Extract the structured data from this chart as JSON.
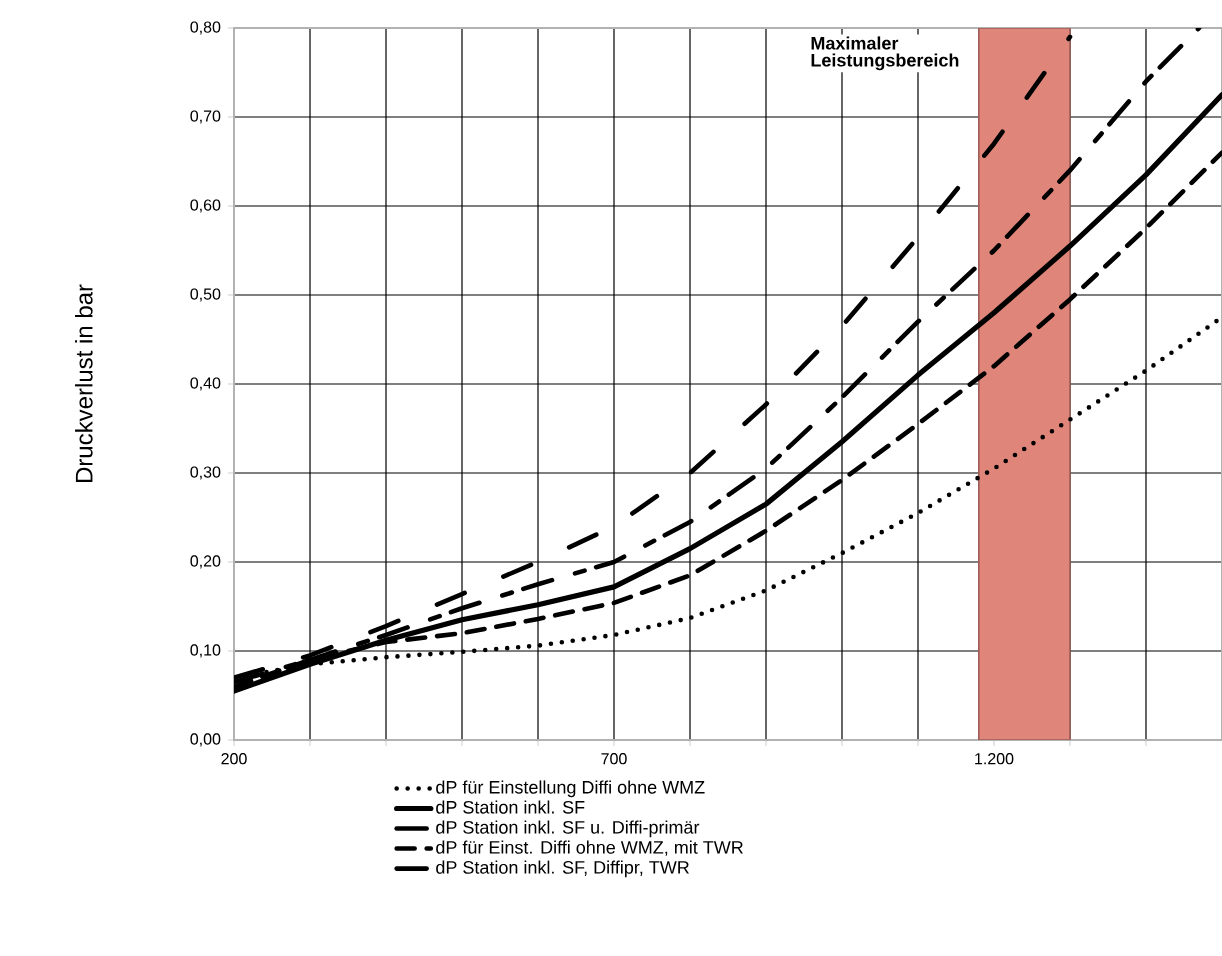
{
  "chart_data": {
    "type": "line",
    "ylabel": "Druckverlust in bar",
    "x": [
      200,
      300,
      400,
      500,
      600,
      700,
      800,
      900,
      1000,
      1100,
      1200,
      1300,
      1400,
      1500
    ],
    "xlim": [
      200,
      1500
    ],
    "ylim": [
      0,
      0.8
    ],
    "xticks": [
      200,
      {
        "value": 300,
        "label": null
      },
      {
        "value": 400,
        "label": null
      },
      {
        "value": 500,
        "label": null
      },
      {
        "value": 600,
        "label": null
      },
      700,
      {
        "value": 800,
        "label": null
      },
      {
        "value": 900,
        "label": null
      },
      {
        "value": 1000,
        "label": null
      },
      {
        "value": 1100,
        "label": null
      },
      {
        "value": 1200,
        "label": "1.200"
      },
      {
        "value": 1300,
        "label": null
      },
      {
        "value": 1400,
        "label": null
      }
    ],
    "yticks": [
      {
        "value": 0,
        "label": "0,00"
      },
      {
        "value": 0.1,
        "label": "0,10"
      },
      {
        "value": 0.2,
        "label": "0,20"
      },
      {
        "value": 0.3,
        "label": "0,30"
      },
      {
        "value": 0.4,
        "label": "0,40"
      },
      {
        "value": 0.5,
        "label": "0,50"
      },
      {
        "value": 0.6,
        "label": "0,60"
      },
      {
        "value": 0.7,
        "label": "0,70"
      },
      {
        "value": 0.8,
        "label": "0,80"
      }
    ],
    "grid": true,
    "legend": "bottom",
    "bands": [
      {
        "axis": "x",
        "from": 1180,
        "to": 1300,
        "label": "Maximaler Leistungsbereich",
        "color": "#e0857a"
      }
    ],
    "series": [
      {
        "name": "dP für Einstellung Diffi ohne WMZ",
        "color": "#000000",
        "line_style": "dotted",
        "values": [
          0.07,
          0.085,
          0.093,
          0.099,
          0.106,
          0.118,
          0.137,
          0.168,
          0.21,
          0.255,
          0.305,
          0.36,
          0.415,
          0.475
        ]
      },
      {
        "name": "dP Station inkl. SF",
        "color": "#000000",
        "line_style": "solid",
        "values": [
          0.055,
          0.085,
          0.112,
          0.135,
          0.152,
          0.172,
          0.215,
          0.265,
          0.335,
          0.41,
          0.48,
          0.555,
          0.635,
          0.725
        ]
      },
      {
        "name": "dP Station inkl. SF u. Diffi-primär",
        "color": "#000000",
        "line_style": "dashdot",
        "x": [
          200,
          300,
          400,
          500,
          600,
          700,
          800,
          900,
          1000,
          1100,
          1200,
          1300,
          1400,
          1470
        ],
        "values": [
          0.065,
          0.09,
          0.118,
          0.148,
          0.175,
          0.2,
          0.245,
          0.305,
          0.385,
          0.47,
          0.55,
          0.64,
          0.74,
          0.8
        ]
      },
      {
        "name": "dP für Einst. Diffi ohne WMZ, mit TWR",
        "color": "#000000",
        "line_style": "dashed",
        "values": [
          0.06,
          0.09,
          0.11,
          0.12,
          0.136,
          0.154,
          0.185,
          0.235,
          0.292,
          0.355,
          0.42,
          0.495,
          0.575,
          0.66
        ]
      },
      {
        "name": "dP Station inkl. SF, Diffipr, TWR",
        "color": "#000000",
        "line_style": "dashdotdot",
        "x": [
          200,
          300,
          400,
          500,
          600,
          700,
          800,
          900,
          1000,
          1100,
          1200,
          1300
        ],
        "values": [
          0.07,
          0.095,
          0.128,
          0.164,
          0.2,
          0.24,
          0.3,
          0.377,
          0.465,
          0.565,
          0.67,
          0.79
        ]
      }
    ]
  }
}
